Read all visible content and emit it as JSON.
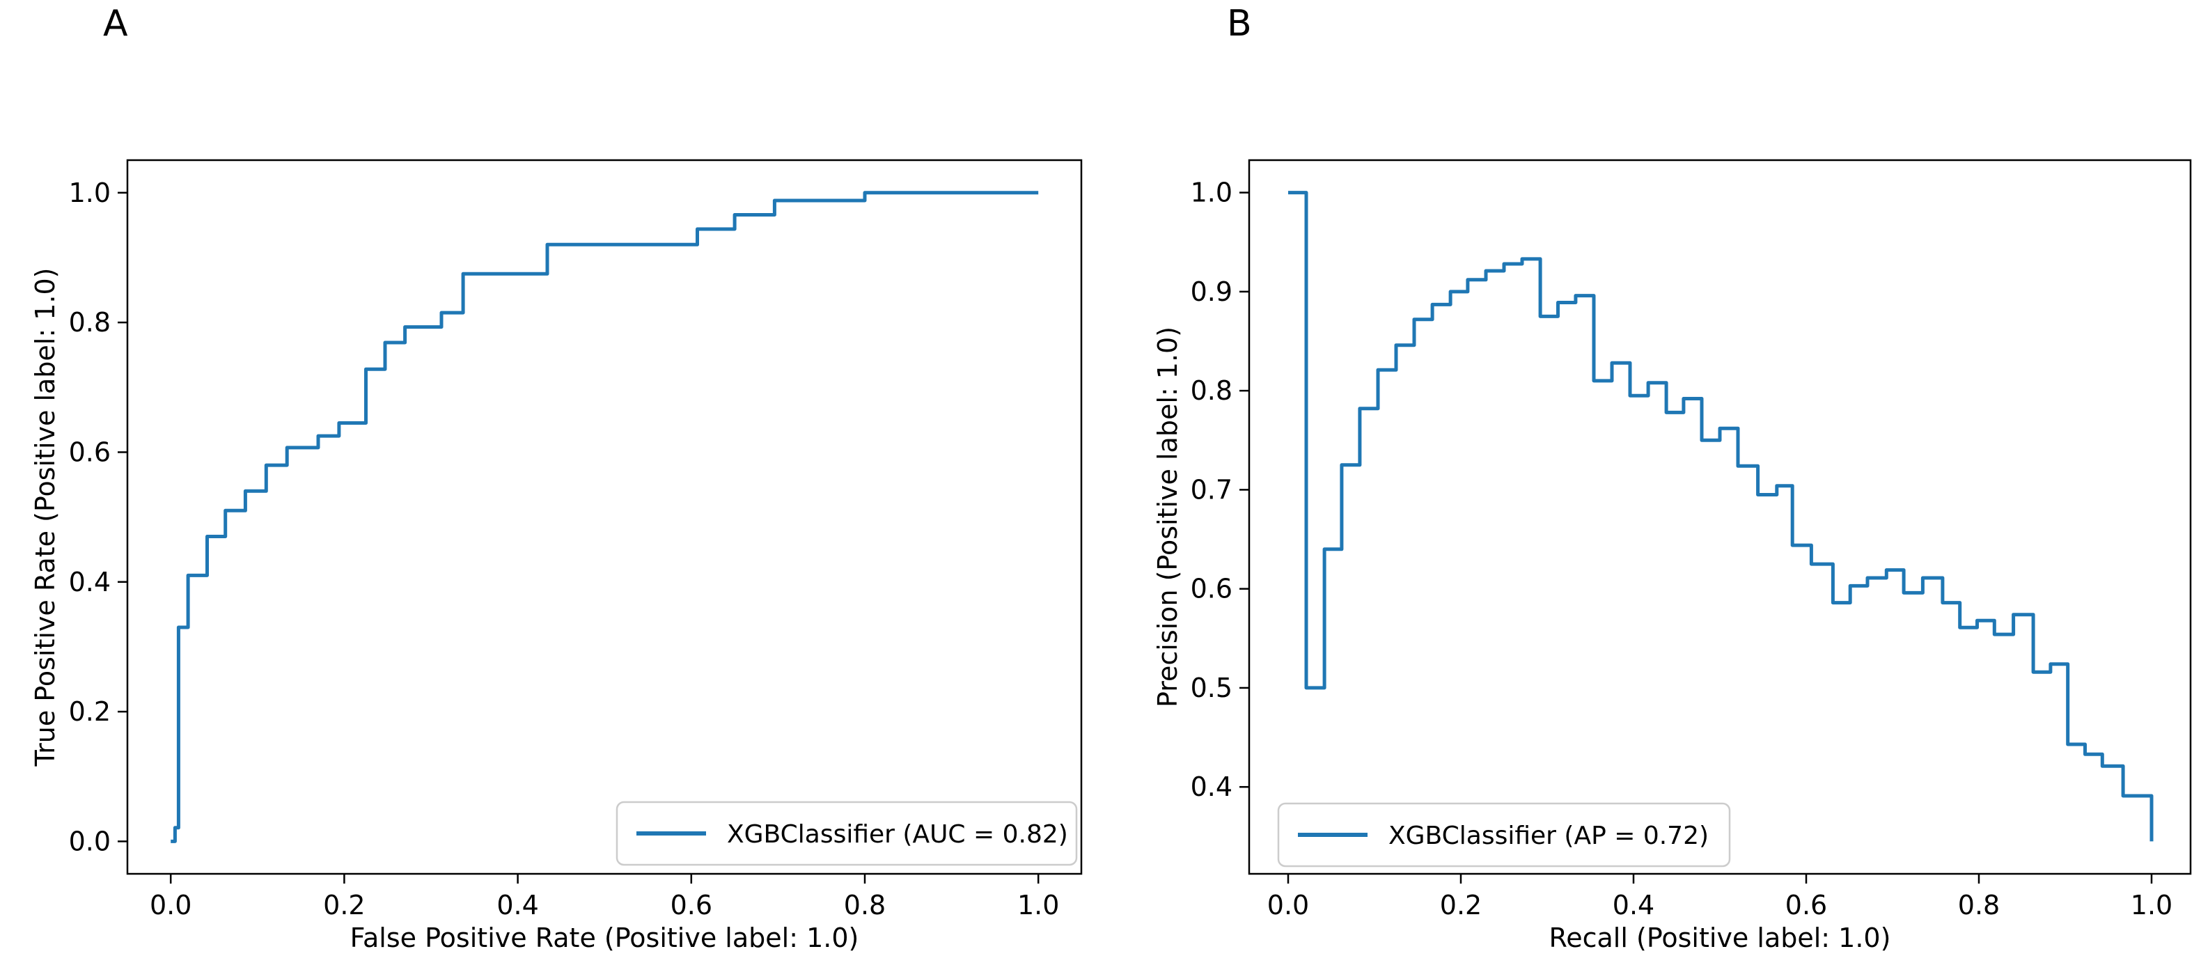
{
  "figure": {
    "background": "#ffffff",
    "panel_labels": {
      "a": "A",
      "b": "B"
    }
  },
  "chart_data": [
    {
      "type": "line",
      "subtype": "step-roc-curve",
      "panel_label": "A",
      "xlabel": "False Positive Rate (Positive label: 1.0)",
      "ylabel": "True Positive Rate (Positive label: 1.0)",
      "legend_label": "XGBClassifier (AUC = 0.82)",
      "legend_position": "lower right",
      "line_color": "#1f77b4",
      "auc": 0.82,
      "xlim": [
        -0.05,
        1.05
      ],
      "ylim": [
        -0.05,
        1.05
      ],
      "grid": false,
      "xticks": [
        0.0,
        0.2,
        0.4,
        0.6,
        0.8,
        1.0
      ],
      "xtick_labels": [
        "0.0",
        "0.2",
        "0.4",
        "0.6",
        "0.8",
        "1.0"
      ],
      "yticks": [
        0.0,
        0.2,
        0.4,
        0.6,
        0.8,
        1.0
      ],
      "ytick_labels": [
        "0.0",
        "0.2",
        "0.4",
        "0.6",
        "0.8",
        "1.0"
      ],
      "points": [
        [
          0.0,
          0.0
        ],
        [
          0.005,
          0.0
        ],
        [
          0.005,
          0.021
        ],
        [
          0.009,
          0.021
        ],
        [
          0.009,
          0.33
        ],
        [
          0.02,
          0.33
        ],
        [
          0.02,
          0.41
        ],
        [
          0.042,
          0.41
        ],
        [
          0.042,
          0.47
        ],
        [
          0.063,
          0.47
        ],
        [
          0.063,
          0.51
        ],
        [
          0.086,
          0.51
        ],
        [
          0.086,
          0.54
        ],
        [
          0.11,
          0.54
        ],
        [
          0.11,
          0.58
        ],
        [
          0.134,
          0.58
        ],
        [
          0.134,
          0.607
        ],
        [
          0.17,
          0.607
        ],
        [
          0.17,
          0.625
        ],
        [
          0.194,
          0.625
        ],
        [
          0.194,
          0.645
        ],
        [
          0.225,
          0.645
        ],
        [
          0.225,
          0.728
        ],
        [
          0.247,
          0.728
        ],
        [
          0.247,
          0.769
        ],
        [
          0.27,
          0.769
        ],
        [
          0.27,
          0.793
        ],
        [
          0.312,
          0.793
        ],
        [
          0.312,
          0.815
        ],
        [
          0.337,
          0.815
        ],
        [
          0.337,
          0.875
        ],
        [
          0.434,
          0.875
        ],
        [
          0.434,
          0.92
        ],
        [
          0.607,
          0.92
        ],
        [
          0.607,
          0.944
        ],
        [
          0.65,
          0.944
        ],
        [
          0.65,
          0.966
        ],
        [
          0.696,
          0.966
        ],
        [
          0.696,
          0.988
        ],
        [
          0.8,
          0.988
        ],
        [
          0.8,
          1.0
        ],
        [
          1.0,
          1.0
        ]
      ]
    },
    {
      "type": "line",
      "subtype": "step-precision-recall-curve",
      "panel_label": "B",
      "xlabel": "Recall (Positive label: 1.0)",
      "ylabel": "Precision (Positive label: 1.0)",
      "legend_label": "XGBClassifier (AP = 0.72)",
      "legend_position": "lower left",
      "line_color": "#1f77b4",
      "ap": 0.72,
      "xlim": [
        -0.05,
        1.05
      ],
      "ylim": [
        0.312,
        1.033
      ],
      "grid": false,
      "xticks": [
        0.0,
        0.2,
        0.4,
        0.6,
        0.8,
        1.0
      ],
      "xtick_labels": [
        "0.0",
        "0.2",
        "0.4",
        "0.6",
        "0.8",
        "1.0"
      ],
      "yticks": [
        0.4,
        0.5,
        0.6,
        0.7,
        0.8,
        0.9,
        1.0
      ],
      "ytick_labels": [
        "0.4",
        "0.5",
        "0.6",
        "0.7",
        "0.8",
        "0.9",
        "1.0"
      ],
      "points": [
        [
          0.0,
          1.0
        ],
        [
          0.021,
          1.0
        ],
        [
          0.021,
          0.5
        ],
        [
          0.042,
          0.5
        ],
        [
          0.042,
          0.64
        ],
        [
          0.062,
          0.64
        ],
        [
          0.062,
          0.725
        ],
        [
          0.083,
          0.725
        ],
        [
          0.083,
          0.782
        ],
        [
          0.104,
          0.782
        ],
        [
          0.104,
          0.821
        ],
        [
          0.125,
          0.821
        ],
        [
          0.125,
          0.846
        ],
        [
          0.146,
          0.846
        ],
        [
          0.146,
          0.872
        ],
        [
          0.167,
          0.872
        ],
        [
          0.167,
          0.887
        ],
        [
          0.188,
          0.887
        ],
        [
          0.188,
          0.9
        ],
        [
          0.208,
          0.9
        ],
        [
          0.208,
          0.912
        ],
        [
          0.229,
          0.912
        ],
        [
          0.229,
          0.921
        ],
        [
          0.25,
          0.921
        ],
        [
          0.25,
          0.928
        ],
        [
          0.271,
          0.928
        ],
        [
          0.271,
          0.933
        ],
        [
          0.292,
          0.933
        ],
        [
          0.292,
          0.875
        ],
        [
          0.3125,
          0.875
        ],
        [
          0.3125,
          0.889
        ],
        [
          0.333,
          0.889
        ],
        [
          0.333,
          0.896
        ],
        [
          0.354,
          0.896
        ],
        [
          0.354,
          0.81
        ],
        [
          0.375,
          0.81
        ],
        [
          0.375,
          0.828
        ],
        [
          0.396,
          0.828
        ],
        [
          0.396,
          0.795
        ],
        [
          0.417,
          0.795
        ],
        [
          0.417,
          0.808
        ],
        [
          0.438,
          0.808
        ],
        [
          0.438,
          0.778
        ],
        [
          0.458,
          0.778
        ],
        [
          0.458,
          0.792
        ],
        [
          0.479,
          0.792
        ],
        [
          0.479,
          0.75
        ],
        [
          0.5,
          0.75
        ],
        [
          0.5,
          0.762
        ],
        [
          0.521,
          0.762
        ],
        [
          0.521,
          0.724
        ],
        [
          0.544,
          0.724
        ],
        [
          0.544,
          0.695
        ],
        [
          0.566,
          0.695
        ],
        [
          0.566,
          0.704
        ],
        [
          0.584,
          0.704
        ],
        [
          0.584,
          0.644
        ],
        [
          0.606,
          0.644
        ],
        [
          0.606,
          0.625
        ],
        [
          0.631,
          0.625
        ],
        [
          0.631,
          0.586
        ],
        [
          0.651,
          0.586
        ],
        [
          0.651,
          0.603
        ],
        [
          0.671,
          0.603
        ],
        [
          0.671,
          0.611
        ],
        [
          0.693,
          0.611
        ],
        [
          0.693,
          0.619
        ],
        [
          0.713,
          0.619
        ],
        [
          0.713,
          0.596
        ],
        [
          0.735,
          0.596
        ],
        [
          0.735,
          0.611
        ],
        [
          0.758,
          0.611
        ],
        [
          0.758,
          0.586
        ],
        [
          0.778,
          0.586
        ],
        [
          0.778,
          0.561
        ],
        [
          0.798,
          0.561
        ],
        [
          0.798,
          0.568
        ],
        [
          0.818,
          0.568
        ],
        [
          0.818,
          0.554
        ],
        [
          0.84,
          0.554
        ],
        [
          0.84,
          0.574
        ],
        [
          0.863,
          0.574
        ],
        [
          0.863,
          0.516
        ],
        [
          0.883,
          0.516
        ],
        [
          0.883,
          0.524
        ],
        [
          0.903,
          0.524
        ],
        [
          0.903,
          0.443
        ],
        [
          0.923,
          0.443
        ],
        [
          0.923,
          0.433
        ],
        [
          0.943,
          0.433
        ],
        [
          0.943,
          0.421
        ],
        [
          0.967,
          0.421
        ],
        [
          0.967,
          0.391
        ],
        [
          1.0,
          0.391
        ],
        [
          1.0,
          0.345
        ]
      ]
    }
  ]
}
